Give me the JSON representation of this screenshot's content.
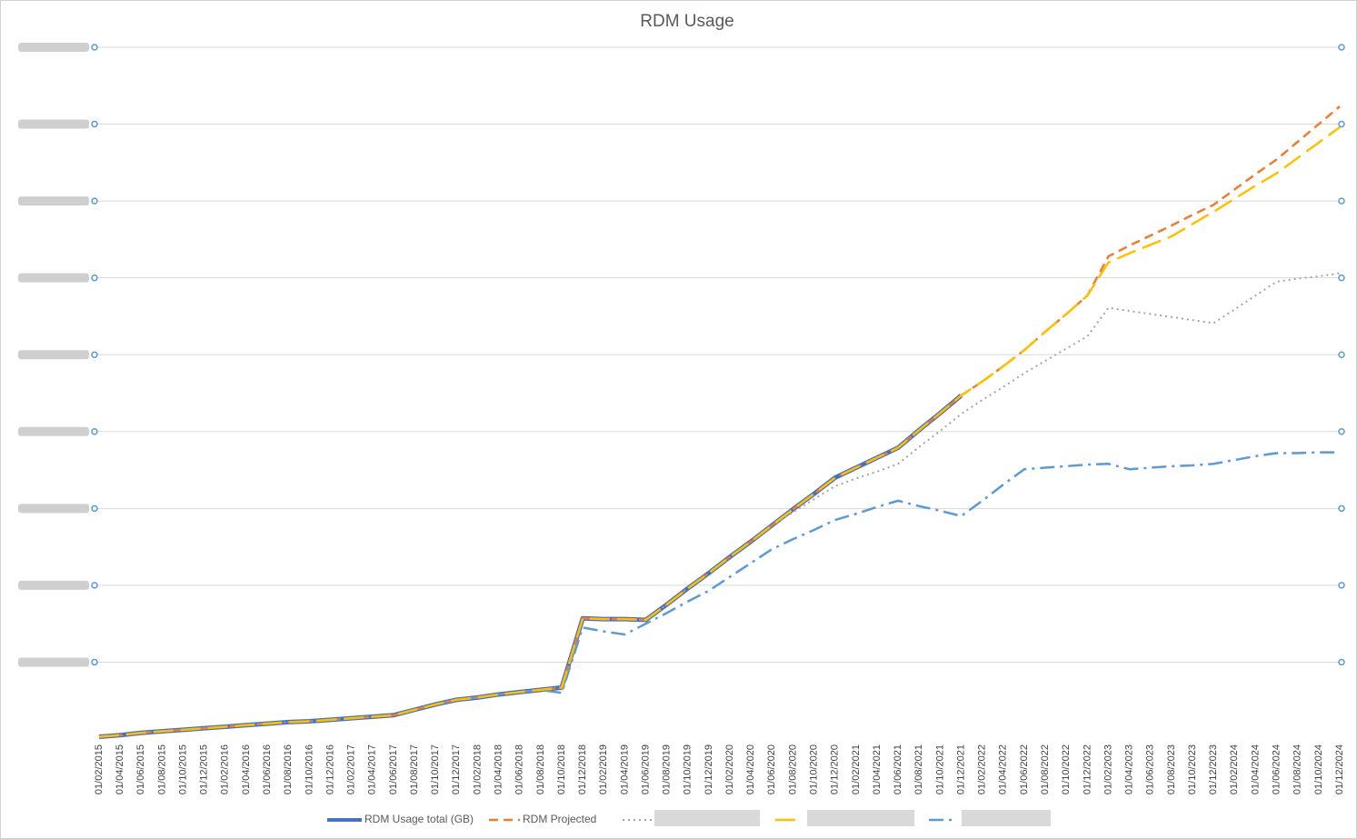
{
  "chart_data": {
    "type": "line",
    "title": "RDM Usage",
    "categories": [
      "01/02/2015",
      "01/04/2015",
      "01/06/2015",
      "01/08/2015",
      "01/10/2015",
      "01/12/2015",
      "01/02/2016",
      "01/04/2016",
      "01/06/2016",
      "01/08/2016",
      "01/10/2016",
      "01/12/2016",
      "01/02/2017",
      "01/04/2017",
      "01/06/2017",
      "01/08/2017",
      "01/10/2017",
      "01/12/2017",
      "01/02/2018",
      "01/04/2018",
      "01/06/2018",
      "01/08/2018",
      "01/10/2018",
      "01/12/2018",
      "01/02/2019",
      "01/04/2019",
      "01/06/2019",
      "01/08/2019",
      "01/10/2019",
      "01/12/2019",
      "01/02/2020",
      "01/04/2020",
      "01/06/2020",
      "01/08/2020",
      "01/10/2020",
      "01/12/2020",
      "01/02/2021",
      "01/04/2021",
      "01/06/2021",
      "01/08/2021",
      "01/10/2021",
      "01/12/2021",
      "01/02/2022",
      "01/04/2022",
      "01/06/2022",
      "01/08/2022",
      "01/10/2022",
      "01/12/2022",
      "01/02/2023",
      "01/04/2023",
      "01/06/2023",
      "01/08/2023",
      "01/10/2023",
      "01/12/2023",
      "01/02/2024",
      "01/04/2024",
      "01/06/2024",
      "01/08/2024",
      "01/10/2024",
      "01/12/2024"
    ],
    "ylim": [
      0,
      9
    ],
    "yticks": [
      0,
      1,
      2,
      3,
      4,
      5,
      6,
      7,
      8,
      9
    ],
    "grid": true,
    "series": [
      {
        "name": "RDM Usage total (GB)",
        "color": "#4472c4",
        "style": "solid",
        "values": [
          0.03,
          0.05,
          0.08,
          0.1,
          0.12,
          0.14,
          0.16,
          0.18,
          0.2,
          0.22,
          0.23,
          0.25,
          0.27,
          0.29,
          0.31,
          0.38,
          0.45,
          0.51,
          0.54,
          0.58,
          0.61,
          0.64,
          0.67,
          1.57,
          1.56,
          1.56,
          1.55,
          1.75,
          1.96,
          2.16,
          2.37,
          2.57,
          2.78,
          2.99,
          3.19,
          3.4,
          3.53,
          3.66,
          3.79,
          4.02,
          4.24,
          4.47,
          null,
          null,
          null,
          null,
          null,
          null,
          null,
          null,
          null,
          null,
          null,
          null,
          null,
          null,
          null,
          null,
          null,
          null
        ]
      },
      {
        "color": "#a5a5a5",
        "style": "dotted",
        "values": [
          0.03,
          0.05,
          0.08,
          0.1,
          0.12,
          0.14,
          0.16,
          0.18,
          0.2,
          0.22,
          0.23,
          0.25,
          0.27,
          0.29,
          0.31,
          0.38,
          0.45,
          0.51,
          0.54,
          0.58,
          0.61,
          0.64,
          0.6,
          1.57,
          1.56,
          1.56,
          1.55,
          1.75,
          1.96,
          2.16,
          2.37,
          2.57,
          2.78,
          2.95,
          3.12,
          3.29,
          3.39,
          3.48,
          3.58,
          3.8,
          4.01,
          4.23,
          4.41,
          4.58,
          4.76,
          4.92,
          5.08,
          5.24,
          5.61,
          5.57,
          5.53,
          5.49,
          5.45,
          5.41,
          5.59,
          5.77,
          5.95,
          5.99,
          6.02,
          6.06
        ]
      },
      {
        "color": "#5b9bd5",
        "style": "dash-dot",
        "values": [
          0.03,
          0.05,
          0.08,
          0.1,
          0.12,
          0.14,
          0.16,
          0.18,
          0.2,
          0.22,
          0.23,
          0.25,
          0.27,
          0.29,
          0.31,
          0.38,
          0.45,
          0.51,
          0.54,
          0.58,
          0.61,
          0.64,
          0.6,
          1.45,
          1.4,
          1.36,
          1.5,
          1.64,
          1.79,
          1.93,
          2.11,
          2.29,
          2.47,
          2.6,
          2.72,
          2.85,
          2.93,
          3.02,
          3.1,
          3.03,
          2.97,
          2.9,
          3.1,
          3.31,
          3.51,
          3.53,
          3.55,
          3.57,
          3.58,
          3.51,
          3.53,
          3.55,
          3.56,
          3.58,
          3.63,
          3.68,
          3.72,
          3.72,
          3.73,
          3.73
        ]
      },
      {
        "name": "RDM Projected",
        "color": "#ed7d31",
        "style": "dashed",
        "values": [
          0.03,
          0.05,
          0.08,
          0.1,
          0.12,
          0.14,
          0.16,
          0.18,
          0.2,
          0.22,
          0.23,
          0.25,
          0.27,
          0.29,
          0.31,
          0.38,
          0.45,
          0.51,
          0.54,
          0.58,
          0.61,
          0.64,
          0.67,
          1.57,
          1.56,
          1.56,
          1.55,
          1.75,
          1.96,
          2.16,
          2.37,
          2.57,
          2.78,
          2.99,
          3.19,
          3.4,
          3.53,
          3.66,
          3.79,
          4.02,
          4.24,
          4.47,
          4.65,
          4.85,
          5.06,
          5.3,
          5.53,
          5.77,
          6.28,
          6.42,
          6.55,
          6.68,
          6.82,
          6.95,
          7.15,
          7.35,
          7.54,
          7.77,
          8.0,
          8.23
        ]
      },
      {
        "color": "#ffc000",
        "style": "long-dash",
        "values": [
          0.03,
          0.05,
          0.08,
          0.1,
          0.12,
          0.14,
          0.16,
          0.18,
          0.2,
          0.22,
          0.23,
          0.25,
          0.27,
          0.29,
          0.31,
          0.38,
          0.45,
          0.51,
          0.54,
          0.58,
          0.61,
          0.64,
          0.67,
          1.57,
          1.56,
          1.56,
          1.55,
          1.75,
          1.96,
          2.16,
          2.37,
          2.57,
          2.78,
          2.99,
          3.19,
          3.4,
          3.53,
          3.66,
          3.79,
          4.02,
          4.24,
          4.47,
          4.65,
          4.85,
          5.06,
          5.3,
          5.53,
          5.77,
          6.2,
          6.32,
          6.43,
          6.54,
          6.7,
          6.86,
          7.03,
          7.2,
          7.36,
          7.56,
          7.76,
          7.96
        ]
      }
    ]
  }
}
